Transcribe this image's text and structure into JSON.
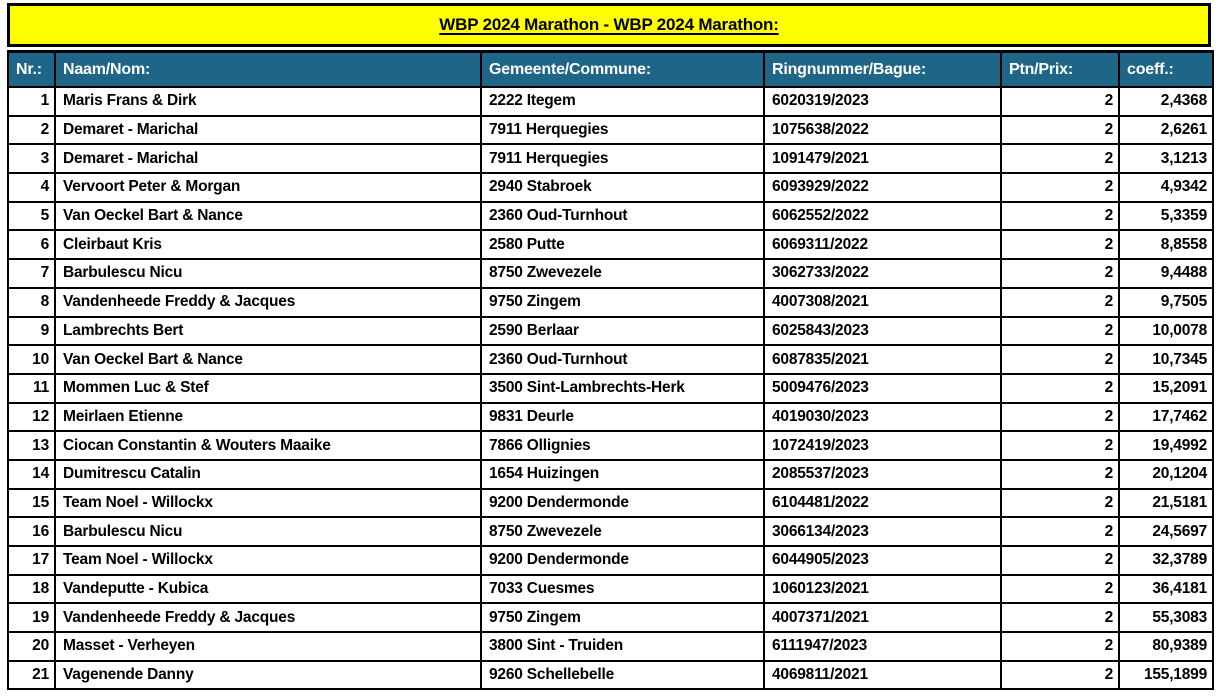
{
  "title": "WBP 2024 Marathon - WBP 2024 Marathon:",
  "colors": {
    "banner_bg": "#ffff00",
    "banner_text": "#000000",
    "header_bg": "#1e6587",
    "header_text": "#ffffff",
    "border": "#000000",
    "row_bg": "#ffffff",
    "row_text": "#000000"
  },
  "table": {
    "columns": [
      {
        "key": "nr",
        "label": "Nr.:"
      },
      {
        "key": "naam",
        "label": "Naam/Nom:"
      },
      {
        "key": "gem",
        "label": "Gemeente/Commune:"
      },
      {
        "key": "ring",
        "label": "Ringnummer/Bague:"
      },
      {
        "key": "ptn",
        "label": "Ptn/Prix:"
      },
      {
        "key": "coeff",
        "label": "coeff.:"
      }
    ],
    "rows": [
      {
        "nr": "1",
        "naam": "Maris Frans & Dirk",
        "gem": "2222 Itegem",
        "ring": "6020319/2023",
        "ptn": "2",
        "coeff": "2,4368"
      },
      {
        "nr": "2",
        "naam": "Demaret - Marichal",
        "gem": "7911 Herquegies",
        "ring": "1075638/2022",
        "ptn": "2",
        "coeff": "2,6261"
      },
      {
        "nr": "3",
        "naam": "Demaret - Marichal",
        "gem": "7911 Herquegies",
        "ring": "1091479/2021",
        "ptn": "2",
        "coeff": "3,1213"
      },
      {
        "nr": "4",
        "naam": "Vervoort Peter & Morgan",
        "gem": "2940 Stabroek",
        "ring": "6093929/2022",
        "ptn": "2",
        "coeff": "4,9342"
      },
      {
        "nr": "5",
        "naam": "Van Oeckel Bart & Nance",
        "gem": "2360 Oud-Turnhout",
        "ring": "6062552/2022",
        "ptn": "2",
        "coeff": "5,3359"
      },
      {
        "nr": "6",
        "naam": "Cleirbaut Kris",
        "gem": "2580 Putte",
        "ring": "6069311/2022",
        "ptn": "2",
        "coeff": "8,8558"
      },
      {
        "nr": "7",
        "naam": "Barbulescu Nicu",
        "gem": "8750 Zwevezele",
        "ring": "3062733/2022",
        "ptn": "2",
        "coeff": "9,4488"
      },
      {
        "nr": "8",
        "naam": "Vandenheede Freddy & Jacques",
        "gem": "9750 Zingem",
        "ring": "4007308/2021",
        "ptn": "2",
        "coeff": "9,7505"
      },
      {
        "nr": "9",
        "naam": "Lambrechts Bert",
        "gem": "2590 Berlaar",
        "ring": "6025843/2023",
        "ptn": "2",
        "coeff": "10,0078"
      },
      {
        "nr": "10",
        "naam": "Van Oeckel Bart & Nance",
        "gem": "2360 Oud-Turnhout",
        "ring": "6087835/2021",
        "ptn": "2",
        "coeff": "10,7345"
      },
      {
        "nr": "11",
        "naam": "Mommen Luc & Stef",
        "gem": "3500 Sint-Lambrechts-Herk",
        "ring": "5009476/2023",
        "ptn": "2",
        "coeff": "15,2091"
      },
      {
        "nr": "12",
        "naam": "Meirlaen Etienne",
        "gem": "9831 Deurle",
        "ring": "4019030/2023",
        "ptn": "2",
        "coeff": "17,7462"
      },
      {
        "nr": "13",
        "naam": "Ciocan Constantin & Wouters Maaike",
        "gem": "7866 Ollignies",
        "ring": "1072419/2023",
        "ptn": "2",
        "coeff": "19,4992"
      },
      {
        "nr": "14",
        "naam": "Dumitrescu Catalin",
        "gem": "1654 Huizingen",
        "ring": "2085537/2023",
        "ptn": "2",
        "coeff": "20,1204"
      },
      {
        "nr": "15",
        "naam": "Team Noel - Willockx",
        "gem": "9200 Dendermonde",
        "ring": "6104481/2022",
        "ptn": "2",
        "coeff": "21,5181"
      },
      {
        "nr": "16",
        "naam": "Barbulescu Nicu",
        "gem": "8750 Zwevezele",
        "ring": "3066134/2023",
        "ptn": "2",
        "coeff": "24,5697"
      },
      {
        "nr": "17",
        "naam": "Team Noel - Willockx",
        "gem": "9200 Dendermonde",
        "ring": "6044905/2023",
        "ptn": "2",
        "coeff": "32,3789"
      },
      {
        "nr": "18",
        "naam": "Vandeputte - Kubica",
        "gem": "7033 Cuesmes",
        "ring": "1060123/2021",
        "ptn": "2",
        "coeff": "36,4181"
      },
      {
        "nr": "19",
        "naam": "Vandenheede Freddy & Jacques",
        "gem": "9750 Zingem",
        "ring": "4007371/2021",
        "ptn": "2",
        "coeff": "55,3083"
      },
      {
        "nr": "20",
        "naam": "Masset - Verheyen",
        "gem": "3800 Sint - Truiden",
        "ring": "6111947/2023",
        "ptn": "2",
        "coeff": "80,9389"
      },
      {
        "nr": "21",
        "naam": "Vagenende Danny",
        "gem": "9260 Schellebelle",
        "ring": "4069811/2021",
        "ptn": "2",
        "coeff": "155,1899"
      }
    ]
  }
}
